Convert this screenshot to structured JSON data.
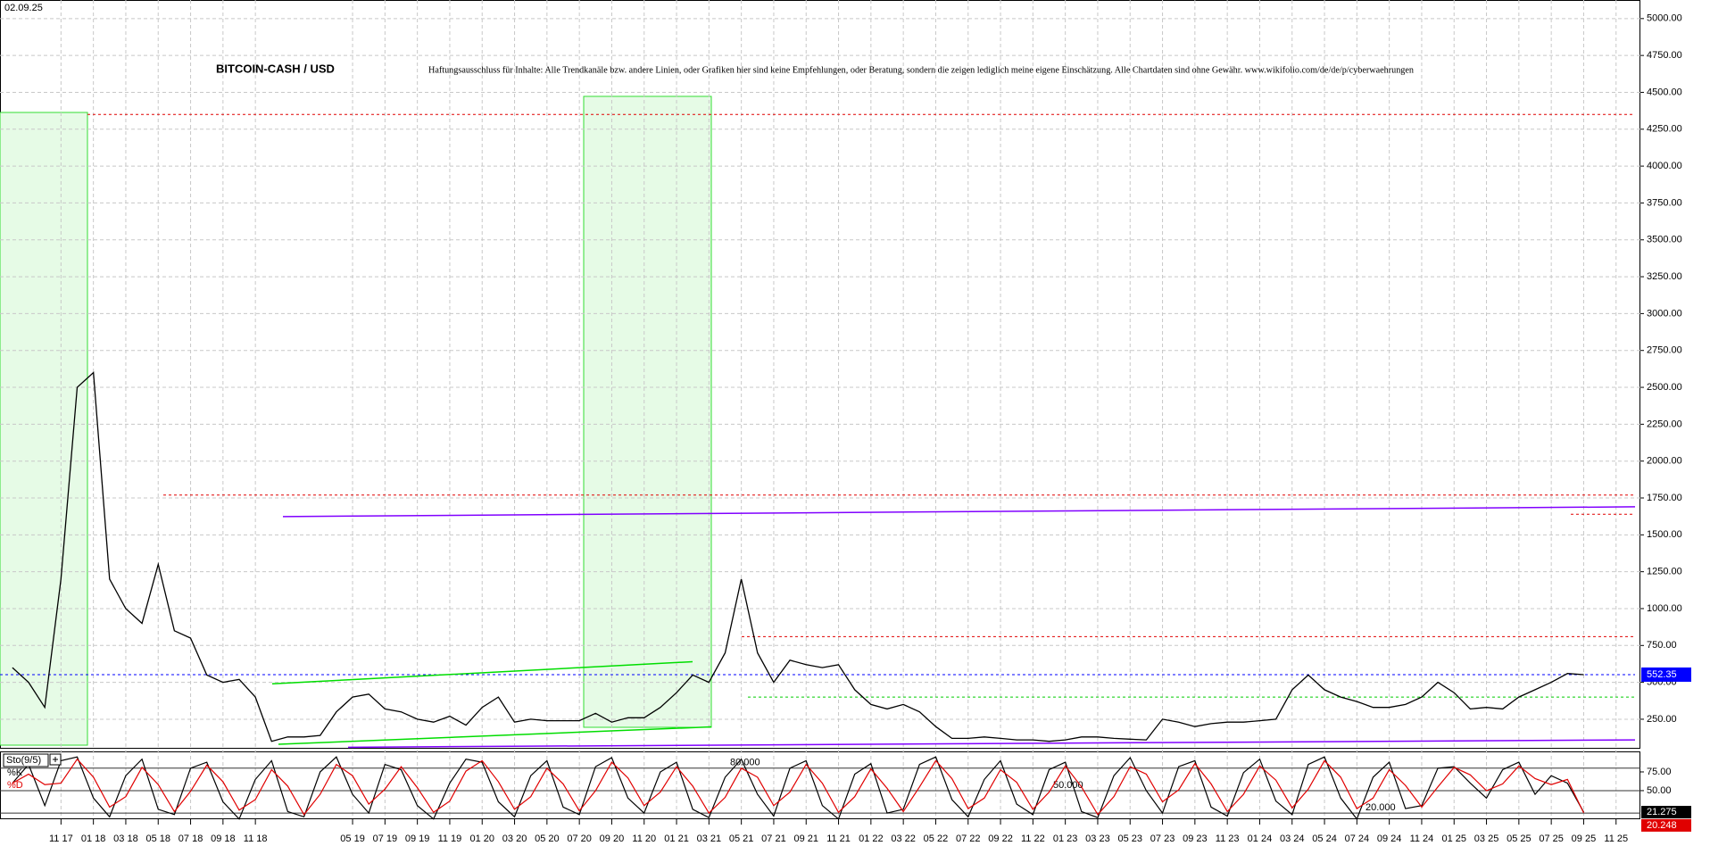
{
  "header": {
    "date": "02.09.25"
  },
  "chart_data": [
    {
      "type": "line",
      "title": "BITCOIN-CASH / USD",
      "subtitle": "Haftungsausschluss für Inhalte: Alle Trendkanäle bzw. andere Linien, oder Grafiken hier sind keine Empfehlungen, oder Beratung, sondern die zeigen lediglich meine eigene Einschätzung. Alle Chartdaten sind ohne Gewähr. www.wikifolio.com/de/de/p/cyberwaehrungen",
      "categories": [
        null,
        null,
        null,
        "11 17",
        null,
        "01 18",
        null,
        "03 18",
        null,
        "05 18",
        null,
        "07 18",
        null,
        "09 18",
        null,
        "11 18",
        null,
        null,
        null,
        null,
        null,
        "05 19",
        null,
        "07 19",
        null,
        "09 19",
        null,
        "11 19",
        null,
        "01 20",
        null,
        "03 20",
        null,
        "05 20",
        null,
        "07 20",
        null,
        "09 20",
        null,
        "11 20",
        null,
        "01 21",
        null,
        "03 21",
        null,
        "05 21",
        null,
        "07 21",
        null,
        "09 21",
        null,
        "11 21",
        null,
        "01 22",
        null,
        "03 22",
        null,
        "05 22",
        null,
        "07 22",
        null,
        "09 22",
        null,
        "11 22",
        null,
        "01 23",
        null,
        "03 23",
        null,
        "05 23",
        null,
        "07 23",
        null,
        "09 23",
        null,
        "11 23",
        null,
        "01 24",
        null,
        "03 24",
        null,
        "05 24",
        null,
        "07 24",
        null,
        "09 24",
        null,
        "11 24",
        null,
        "01 25",
        null,
        "03 25",
        null,
        "05 25",
        null,
        "07 25",
        null,
        "09 25",
        null,
        "11 25"
      ],
      "values": [
        600,
        500,
        330,
        1200,
        2500,
        2600,
        1200,
        1000,
        900,
        1300,
        850,
        800,
        550,
        500,
        520,
        400,
        100,
        130,
        130,
        140,
        300,
        400,
        420,
        320,
        300,
        250,
        230,
        270,
        210,
        330,
        400,
        230,
        250,
        240,
        240,
        240,
        290,
        230,
        260,
        260,
        330,
        430,
        550,
        500,
        700,
        1200,
        700,
        500,
        650,
        620,
        600,
        620,
        450,
        350,
        320,
        350,
        300,
        200,
        120,
        120,
        130,
        120,
        110,
        110,
        100,
        110,
        130,
        130,
        120,
        115,
        110,
        250,
        230,
        200,
        220,
        230,
        230,
        240,
        250,
        450,
        550,
        450,
        400,
        370,
        330,
        330,
        350,
        400,
        500,
        430,
        320,
        330,
        320,
        400,
        450,
        500,
        560,
        552.35,
        null,
        null
      ],
      "color": "#000000",
      "ylim": [
        50,
        5126
      ],
      "yticks": [
        {
          "value": 250,
          "label": "250.00"
        },
        {
          "value": 500,
          "label": "500.00"
        },
        {
          "value": 750,
          "label": "750.00"
        },
        {
          "value": 1000,
          "label": "1000.00"
        },
        {
          "value": 1250,
          "label": "1250.00"
        },
        {
          "value": 1500,
          "label": "1500.00"
        },
        {
          "value": 1750,
          "label": "1750.00"
        },
        {
          "value": 2000,
          "label": "2000.00"
        },
        {
          "value": 2250,
          "label": "2250.00"
        },
        {
          "value": 2500,
          "label": "2500.00"
        },
        {
          "value": 2750,
          "label": "2750.00"
        },
        {
          "value": 3000,
          "label": "3000.00"
        },
        {
          "value": 3250,
          "label": "3250.00"
        },
        {
          "value": 3500,
          "label": "3500.00"
        },
        {
          "value": 3750,
          "label": "3750.00"
        },
        {
          "value": 4000,
          "label": "4000.00"
        },
        {
          "value": 4250,
          "label": "4250.00"
        },
        {
          "value": 4500,
          "label": "4500.00"
        },
        {
          "value": 4750,
          "label": "4750.00"
        },
        {
          "value": 5000,
          "label": "5000.00"
        }
      ],
      "grid": true,
      "last_price": {
        "value": 552.35,
        "color": "#0000ff"
      },
      "levels": [
        {
          "value": 4350,
          "color": "#e00000"
        },
        {
          "value": 1770,
          "color": "#e00000"
        },
        {
          "value": 1640,
          "color": "#e00000"
        },
        {
          "value": 810,
          "color": "#e00000"
        },
        {
          "value": 552.35,
          "color": "#0000ff"
        },
        {
          "value": 400,
          "color": "#00cc00"
        }
      ],
      "trendlines": [
        {
          "values": [
            1624,
            1690
          ],
          "color": "#8000ff"
        },
        {
          "values": [
            60,
            110
          ],
          "color": "#8000ff"
        },
        {
          "values": [
            490,
            640
          ],
          "color": "#00dd00"
        },
        {
          "values": [
            80,
            198
          ],
          "color": "#00dd00"
        }
      ]
    },
    {
      "type": "line",
      "title": "Sto(9/5)",
      "series": [
        {
          "name": "%K",
          "color": "#000000",
          "values": [
            60,
            85,
            30,
            90,
            95,
            40,
            15,
            70,
            92,
            25,
            18,
            80,
            88,
            35,
            12,
            65,
            90,
            22,
            15,
            75,
            95,
            45,
            20,
            85,
            78,
            30,
            12,
            60,
            92,
            88,
            35,
            15,
            70,
            90,
            28,
            18,
            82,
            94,
            40,
            20,
            75,
            88,
            25,
            14,
            68,
            92,
            45,
            16,
            80,
            90,
            30,
            12,
            72,
            86,
            20,
            25,
            85,
            95,
            38,
            15,
            65,
            90,
            32,
            18,
            78,
            88,
            22,
            14,
            70,
            94,
            50,
            20,
            82,
            90,
            28,
            16,
            74,
            92,
            36,
            18,
            85,
            95,
            40,
            12,
            68,
            88,
            26,
            30,
            80,
            82,
            60,
            40,
            78,
            88,
            45,
            70,
            60,
            21.275,
            null,
            null
          ]
        },
        {
          "name": "%D",
          "color": "#e00000",
          "values": [
            60,
            72,
            58,
            60,
            92,
            68,
            28,
            42,
            81,
            58,
            22,
            49,
            84,
            62,
            24,
            38,
            78,
            56,
            18,
            45,
            85,
            70,
            32,
            52,
            82,
            54,
            21,
            36,
            76,
            90,
            62,
            25,
            42,
            80,
            59,
            23,
            50,
            88,
            67,
            30,
            48,
            82,
            56,
            20,
            41,
            80,
            68,
            30,
            48,
            85,
            60,
            21,
            42,
            79,
            53,
            22,
            55,
            90,
            66,
            26,
            40,
            78,
            61,
            25,
            48,
            83,
            55,
            18,
            42,
            82,
            72,
            35,
            51,
            86,
            59,
            22,
            45,
            83,
            64,
            27,
            52,
            90,
            68,
            26,
            40,
            78,
            57,
            28,
            55,
            81,
            71,
            50,
            59,
            83,
            66,
            58,
            65,
            20.248,
            null,
            null
          ]
        }
      ],
      "ylim": [
        13,
        100
      ],
      "yticks": [
        {
          "value": 75,
          "label": "75.00"
        },
        {
          "value": 50,
          "label": "50.00"
        }
      ],
      "levels": [
        {
          "value": 80,
          "label": "80.000"
        },
        {
          "value": 50,
          "label": "50.000"
        },
        {
          "value": 20,
          "label": "20.000"
        }
      ]
    }
  ]
}
